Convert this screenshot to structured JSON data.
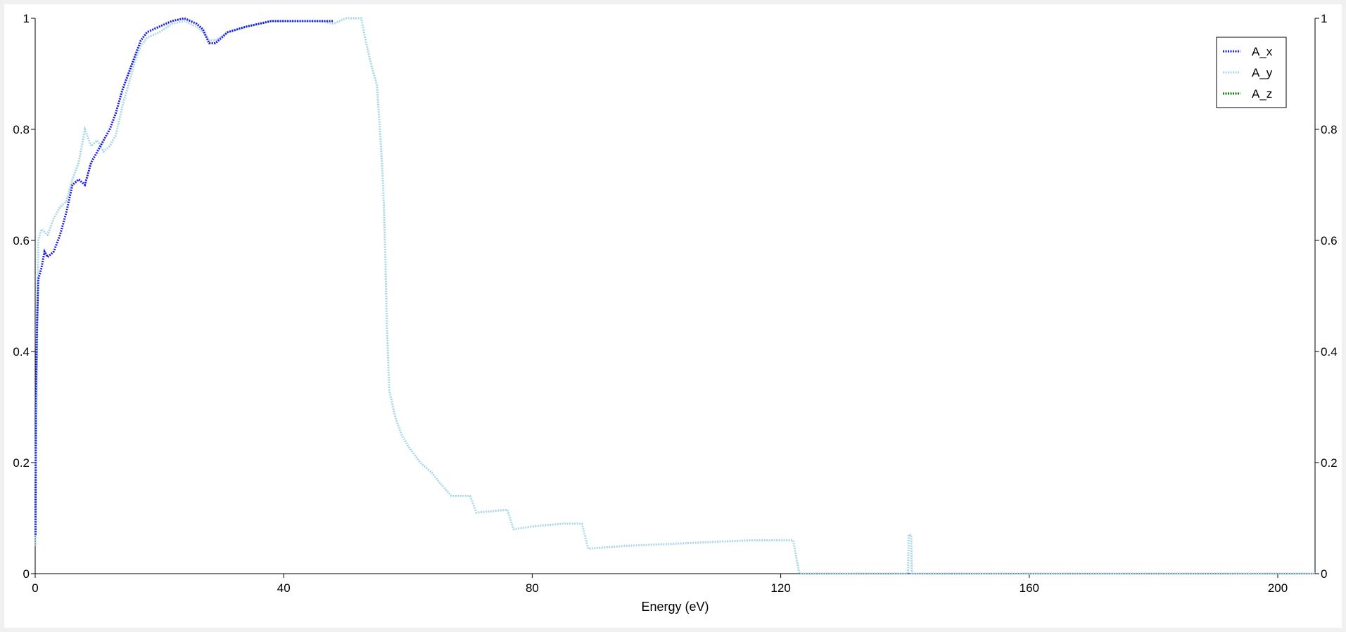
{
  "chart_data": {
    "type": "line",
    "title": "",
    "xlabel": "Energy (eV)",
    "ylabel": "",
    "xlim": [
      0,
      206
    ],
    "ylim": [
      0,
      1
    ],
    "x_ticks": [
      "0",
      "40",
      "80",
      "120",
      "160",
      "200"
    ],
    "x_tick_values": [
      0,
      40,
      80,
      120,
      160,
      200
    ],
    "y_ticks": [
      "0",
      "0.2",
      "0.4",
      "0.6",
      "0.8",
      "1"
    ],
    "y_tick_values": [
      0,
      0.2,
      0.4,
      0.6,
      0.8,
      1
    ],
    "right_y_axis": true,
    "grid": false,
    "legend_position": "top-right",
    "series": [
      {
        "name": "A_x",
        "color": "#1a1ae6",
        "points": [
          [
            0.05,
            0.07
          ],
          [
            0.1,
            0.3
          ],
          [
            0.3,
            0.45
          ],
          [
            0.5,
            0.53
          ],
          [
            1,
            0.55
          ],
          [
            1.5,
            0.58
          ],
          [
            2,
            0.57
          ],
          [
            3,
            0.58
          ],
          [
            4,
            0.61
          ],
          [
            5,
            0.65
          ],
          [
            6,
            0.7
          ],
          [
            7,
            0.71
          ],
          [
            8,
            0.7
          ],
          [
            9,
            0.74
          ],
          [
            10,
            0.76
          ],
          [
            11,
            0.78
          ],
          [
            12,
            0.8
          ],
          [
            13,
            0.83
          ],
          [
            14,
            0.87
          ],
          [
            15,
            0.9
          ],
          [
            16,
            0.93
          ],
          [
            17,
            0.96
          ],
          [
            18,
            0.975
          ],
          [
            20,
            0.985
          ],
          [
            22,
            0.995
          ],
          [
            24,
            1.0
          ],
          [
            26,
            0.99
          ],
          [
            27,
            0.98
          ],
          [
            28,
            0.955
          ],
          [
            29,
            0.955
          ],
          [
            31,
            0.975
          ],
          [
            34,
            0.985
          ],
          [
            38,
            0.995
          ],
          [
            42,
            0.995
          ],
          [
            44,
            0.995
          ],
          [
            48,
            0.995
          ]
        ]
      },
      {
        "name": "A_y",
        "color": "#a8d8e8",
        "points": [
          [
            0.05,
            0.05
          ],
          [
            0.1,
            0.2
          ],
          [
            0.3,
            0.4
          ],
          [
            0.5,
            0.6
          ],
          [
            1,
            0.62
          ],
          [
            2,
            0.61
          ],
          [
            3,
            0.64
          ],
          [
            4,
            0.66
          ],
          [
            5,
            0.67
          ],
          [
            6,
            0.71
          ],
          [
            7,
            0.74
          ],
          [
            8,
            0.8
          ],
          [
            9,
            0.77
          ],
          [
            10,
            0.78
          ],
          [
            11,
            0.76
          ],
          [
            12,
            0.77
          ],
          [
            13,
            0.79
          ],
          [
            14,
            0.84
          ],
          [
            15,
            0.88
          ],
          [
            16,
            0.92
          ],
          [
            17,
            0.95
          ],
          [
            18,
            0.965
          ],
          [
            20,
            0.975
          ],
          [
            22,
            0.99
          ],
          [
            24,
            0.995
          ],
          [
            26,
            0.985
          ],
          [
            27,
            0.975
          ],
          [
            28,
            0.96
          ],
          [
            29,
            0.96
          ],
          [
            31,
            0.975
          ],
          [
            34,
            0.985
          ],
          [
            38,
            0.995
          ],
          [
            42,
            0.995
          ],
          [
            46,
            0.995
          ],
          [
            48,
            0.99
          ],
          [
            50,
            1.0
          ],
          [
            52.5,
            1.0
          ],
          [
            53,
            0.97
          ],
          [
            54,
            0.92
          ],
          [
            55,
            0.88
          ],
          [
            55.5,
            0.8
          ],
          [
            56,
            0.7
          ],
          [
            56.3,
            0.6
          ],
          [
            56.6,
            0.45
          ],
          [
            57,
            0.33
          ],
          [
            58,
            0.28
          ],
          [
            59,
            0.25
          ],
          [
            60,
            0.23
          ],
          [
            62,
            0.2
          ],
          [
            63,
            0.19
          ],
          [
            64,
            0.18
          ],
          [
            65,
            0.165
          ],
          [
            67,
            0.14
          ],
          [
            70,
            0.14
          ],
          [
            71,
            0.11
          ],
          [
            76,
            0.115
          ],
          [
            77,
            0.08
          ],
          [
            80,
            0.085
          ],
          [
            85,
            0.09
          ],
          [
            88,
            0.09
          ],
          [
            89,
            0.045
          ],
          [
            95,
            0.05
          ],
          [
            105,
            0.055
          ],
          [
            115,
            0.06
          ],
          [
            122,
            0.06
          ],
          [
            123,
            0.0
          ],
          [
            140.5,
            0.0
          ],
          [
            140.6,
            0.07
          ],
          [
            141,
            0.07
          ],
          [
            141.1,
            0.0
          ],
          [
            206,
            0.0
          ]
        ]
      },
      {
        "name": "A_z",
        "color": "#0a7a0a",
        "points": []
      }
    ]
  }
}
